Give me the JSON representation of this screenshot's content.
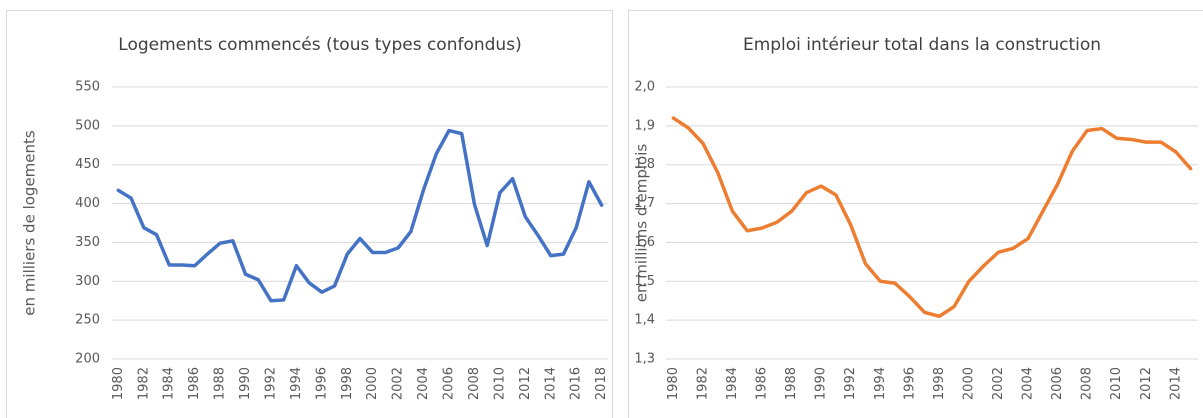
{
  "chart_data": [
    {
      "type": "line",
      "title": "Logements commencés (tous types confondus)",
      "y_label": "en milliers de logements",
      "categories": [
        "1980",
        null,
        "1982",
        null,
        "1984",
        null,
        "1986",
        null,
        "1988",
        null,
        "1990",
        null,
        "1992",
        null,
        "1994",
        null,
        "1996",
        null,
        "1998",
        null,
        "2000",
        null,
        "2002",
        null,
        "2004",
        null,
        "2006",
        null,
        "2008",
        null,
        "2010",
        null,
        "2012",
        null,
        "2014",
        null,
        "2016",
        null,
        "2018"
      ],
      "values": [
        417,
        407,
        369,
        360,
        321,
        321,
        320,
        335,
        349,
        352,
        309,
        302,
        275,
        276,
        320,
        298,
        286,
        294,
        335,
        355,
        337,
        337,
        343,
        364,
        418,
        464,
        494,
        490,
        399,
        346,
        414,
        432,
        383,
        359,
        333,
        335,
        369,
        428,
        398
      ],
      "color": "#4472c4",
      "ylim": [
        200,
        550
      ],
      "yticks": [
        200,
        250,
        300,
        350,
        400,
        450,
        500,
        550
      ],
      "grid": true
    },
    {
      "type": "line",
      "title": "Emploi intérieur total dans la construction",
      "y_label": "en millions d'emplois",
      "categories": [
        "1980",
        null,
        "1982",
        null,
        "1984",
        null,
        "1986",
        null,
        "1988",
        null,
        "1990",
        null,
        "1992",
        null,
        "1994",
        null,
        "1996",
        null,
        "1998",
        null,
        "2000",
        null,
        "2002",
        null,
        "2004",
        null,
        "2006",
        null,
        "2008",
        null,
        "2010",
        null,
        "2012",
        null,
        "2014",
        null
      ],
      "values": [
        1.92,
        1.895,
        1.855,
        1.78,
        1.68,
        1.63,
        1.637,
        1.652,
        1.68,
        1.728,
        1.745,
        1.722,
        1.645,
        1.545,
        1.5,
        1.495,
        1.46,
        1.42,
        1.41,
        1.435,
        1.5,
        1.54,
        1.575,
        1.585,
        1.61,
        1.68,
        1.75,
        1.835,
        1.888,
        1.893,
        1.868,
        1.865,
        1.858,
        1.858,
        1.833,
        1.79
      ],
      "color": "#ed7d31",
      "ylim": [
        1.3,
        2.0
      ],
      "yticks": [
        {
          "value": 1.3,
          "label": "1,3"
        },
        {
          "value": 1.4,
          "label": "1,4"
        },
        {
          "value": 1.5,
          "label": "1,5"
        },
        {
          "value": 1.6,
          "label": "1,6"
        },
        {
          "value": 1.7,
          "label": "1,7"
        },
        {
          "value": 1.8,
          "label": "1,8"
        },
        {
          "value": 1.9,
          "label": "1,9"
        },
        {
          "value": 2.0,
          "label": "2,0"
        }
      ],
      "grid": true
    }
  ]
}
